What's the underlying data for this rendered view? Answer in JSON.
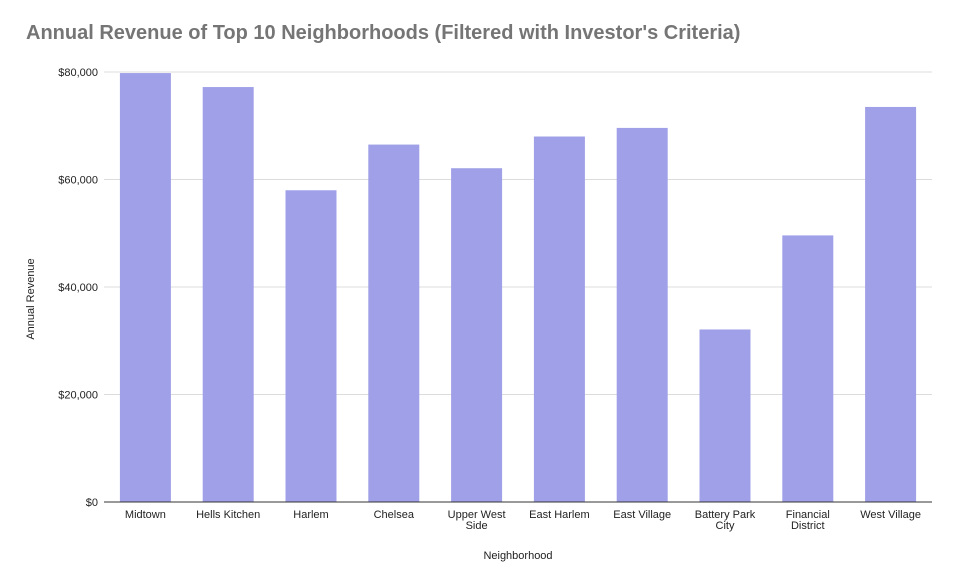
{
  "chart_data": {
    "type": "bar",
    "title": "Annual Revenue of Top 10 Neighborhoods (Filtered with Investor's Criteria)",
    "xlabel": "Neighborhood",
    "ylabel": "Annual Revenue",
    "categories": [
      "Midtown",
      "Hells Kitchen",
      "Harlem",
      "Chelsea",
      "Upper West Side",
      "East Harlem",
      "East Village",
      "Battery Park City",
      "Financial District",
      "West Village"
    ],
    "category_lines": [
      [
        "Midtown"
      ],
      [
        "Hells Kitchen"
      ],
      [
        "Harlem"
      ],
      [
        "Chelsea"
      ],
      [
        "Upper West",
        "Side"
      ],
      [
        "East Harlem"
      ],
      [
        "East Village"
      ],
      [
        "Battery Park",
        "City"
      ],
      [
        "Financial",
        "District"
      ],
      [
        "West Village"
      ]
    ],
    "values": [
      79800,
      77200,
      58000,
      66500,
      62100,
      68000,
      69600,
      32100,
      49600,
      73500
    ],
    "ylim": [
      0,
      80000
    ],
    "yticks": [
      0,
      20000,
      40000,
      60000,
      80000
    ],
    "ytick_labels": [
      "$0",
      "$20,000",
      "$40,000",
      "$60,000",
      "$80,000"
    ],
    "grid": true,
    "legend": "none",
    "bar_color": "#a0a0e8"
  }
}
